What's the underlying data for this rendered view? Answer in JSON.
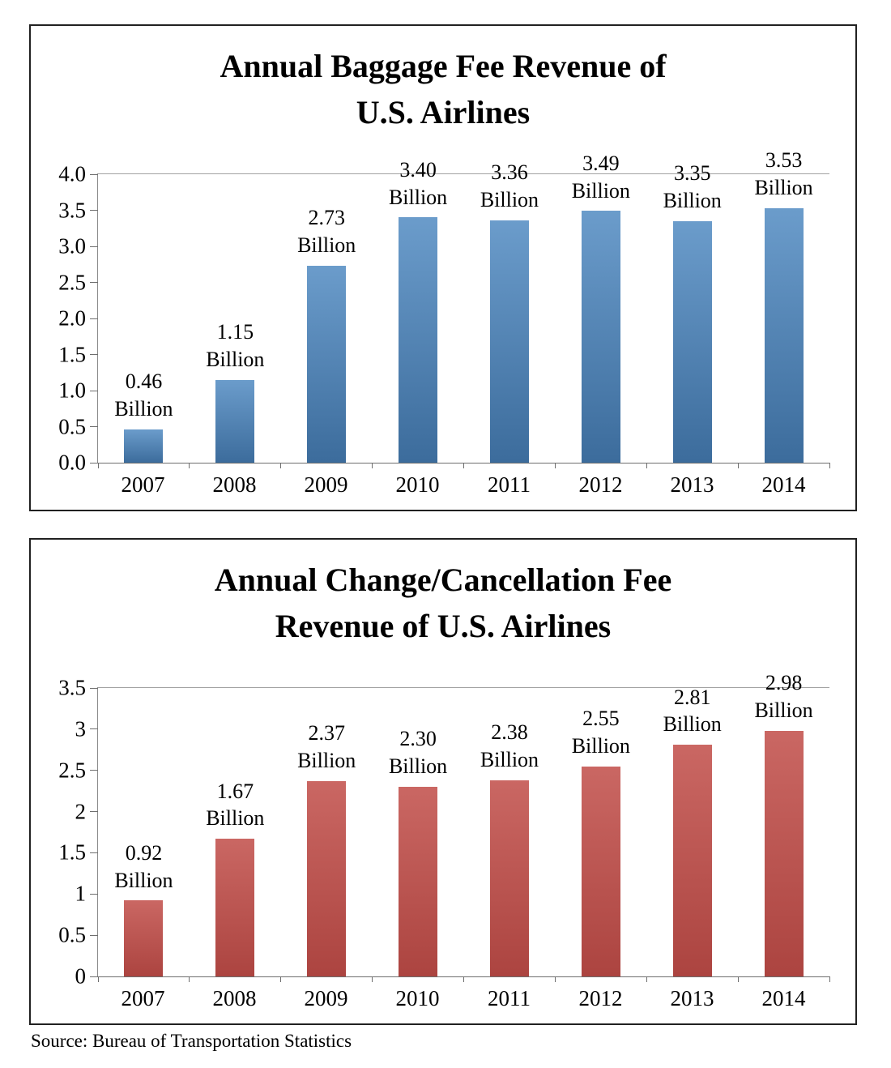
{
  "source_note": "Source: Bureau of Transportation Statistics",
  "chart_data": [
    {
      "type": "bar",
      "title": "Annual Baggage Fee Revenue of\nU.S. Airlines",
      "categories": [
        "2007",
        "2008",
        "2009",
        "2010",
        "2011",
        "2012",
        "2013",
        "2014"
      ],
      "values": [
        0.46,
        1.15,
        2.73,
        3.4,
        3.36,
        3.49,
        3.35,
        3.53
      ],
      "value_labels": [
        "0.46",
        "1.15",
        "2.73",
        "3.40",
        "3.36",
        "3.49",
        "3.35",
        "3.53"
      ],
      "value_suffix": "Billion",
      "xlabel": "",
      "ylabel": "",
      "ylim": [
        0,
        4
      ],
      "yticks": [
        {
          "value": 0.0,
          "label": "0.0"
        },
        {
          "value": 0.5,
          "label": "0.5"
        },
        {
          "value": 1.0,
          "label": "1.0"
        },
        {
          "value": 1.5,
          "label": "1.5"
        },
        {
          "value": 2.0,
          "label": "2.0"
        },
        {
          "value": 2.5,
          "label": "2.5"
        },
        {
          "value": 3.0,
          "label": "3.0"
        },
        {
          "value": 3.5,
          "label": "3.5"
        },
        {
          "value": 4.0,
          "label": "4.0"
        }
      ],
      "bar_gradient": [
        "#6B9CCB",
        "#3C6C9C"
      ],
      "legend": "none",
      "grid": "top boundary line only"
    },
    {
      "type": "bar",
      "title": "Annual Change/Cancellation Fee\nRevenue of U.S. Airlines",
      "categories": [
        "2007",
        "2008",
        "2009",
        "2010",
        "2011",
        "2012",
        "2013",
        "2014"
      ],
      "values": [
        0.92,
        1.67,
        2.37,
        2.3,
        2.38,
        2.55,
        2.81,
        2.98
      ],
      "value_labels": [
        "0.92",
        "1.67",
        "2.37",
        "2.30",
        "2.38",
        "2.55",
        "2.81",
        "2.98"
      ],
      "value_suffix": "Billion",
      "xlabel": "",
      "ylabel": "",
      "ylim": [
        0,
        3.5
      ],
      "yticks": [
        {
          "value": 0.0,
          "label": "0"
        },
        {
          "value": 0.5,
          "label": "0.5"
        },
        {
          "value": 1.0,
          "label": "1"
        },
        {
          "value": 1.5,
          "label": "1.5"
        },
        {
          "value": 2.0,
          "label": "2"
        },
        {
          "value": 2.5,
          "label": "2.5"
        },
        {
          "value": 3.0,
          "label": "3"
        },
        {
          "value": 3.5,
          "label": "3.5"
        }
      ],
      "bar_gradient": [
        "#CA6763",
        "#AC4440"
      ],
      "legend": "none",
      "grid": "top boundary line only"
    }
  ]
}
